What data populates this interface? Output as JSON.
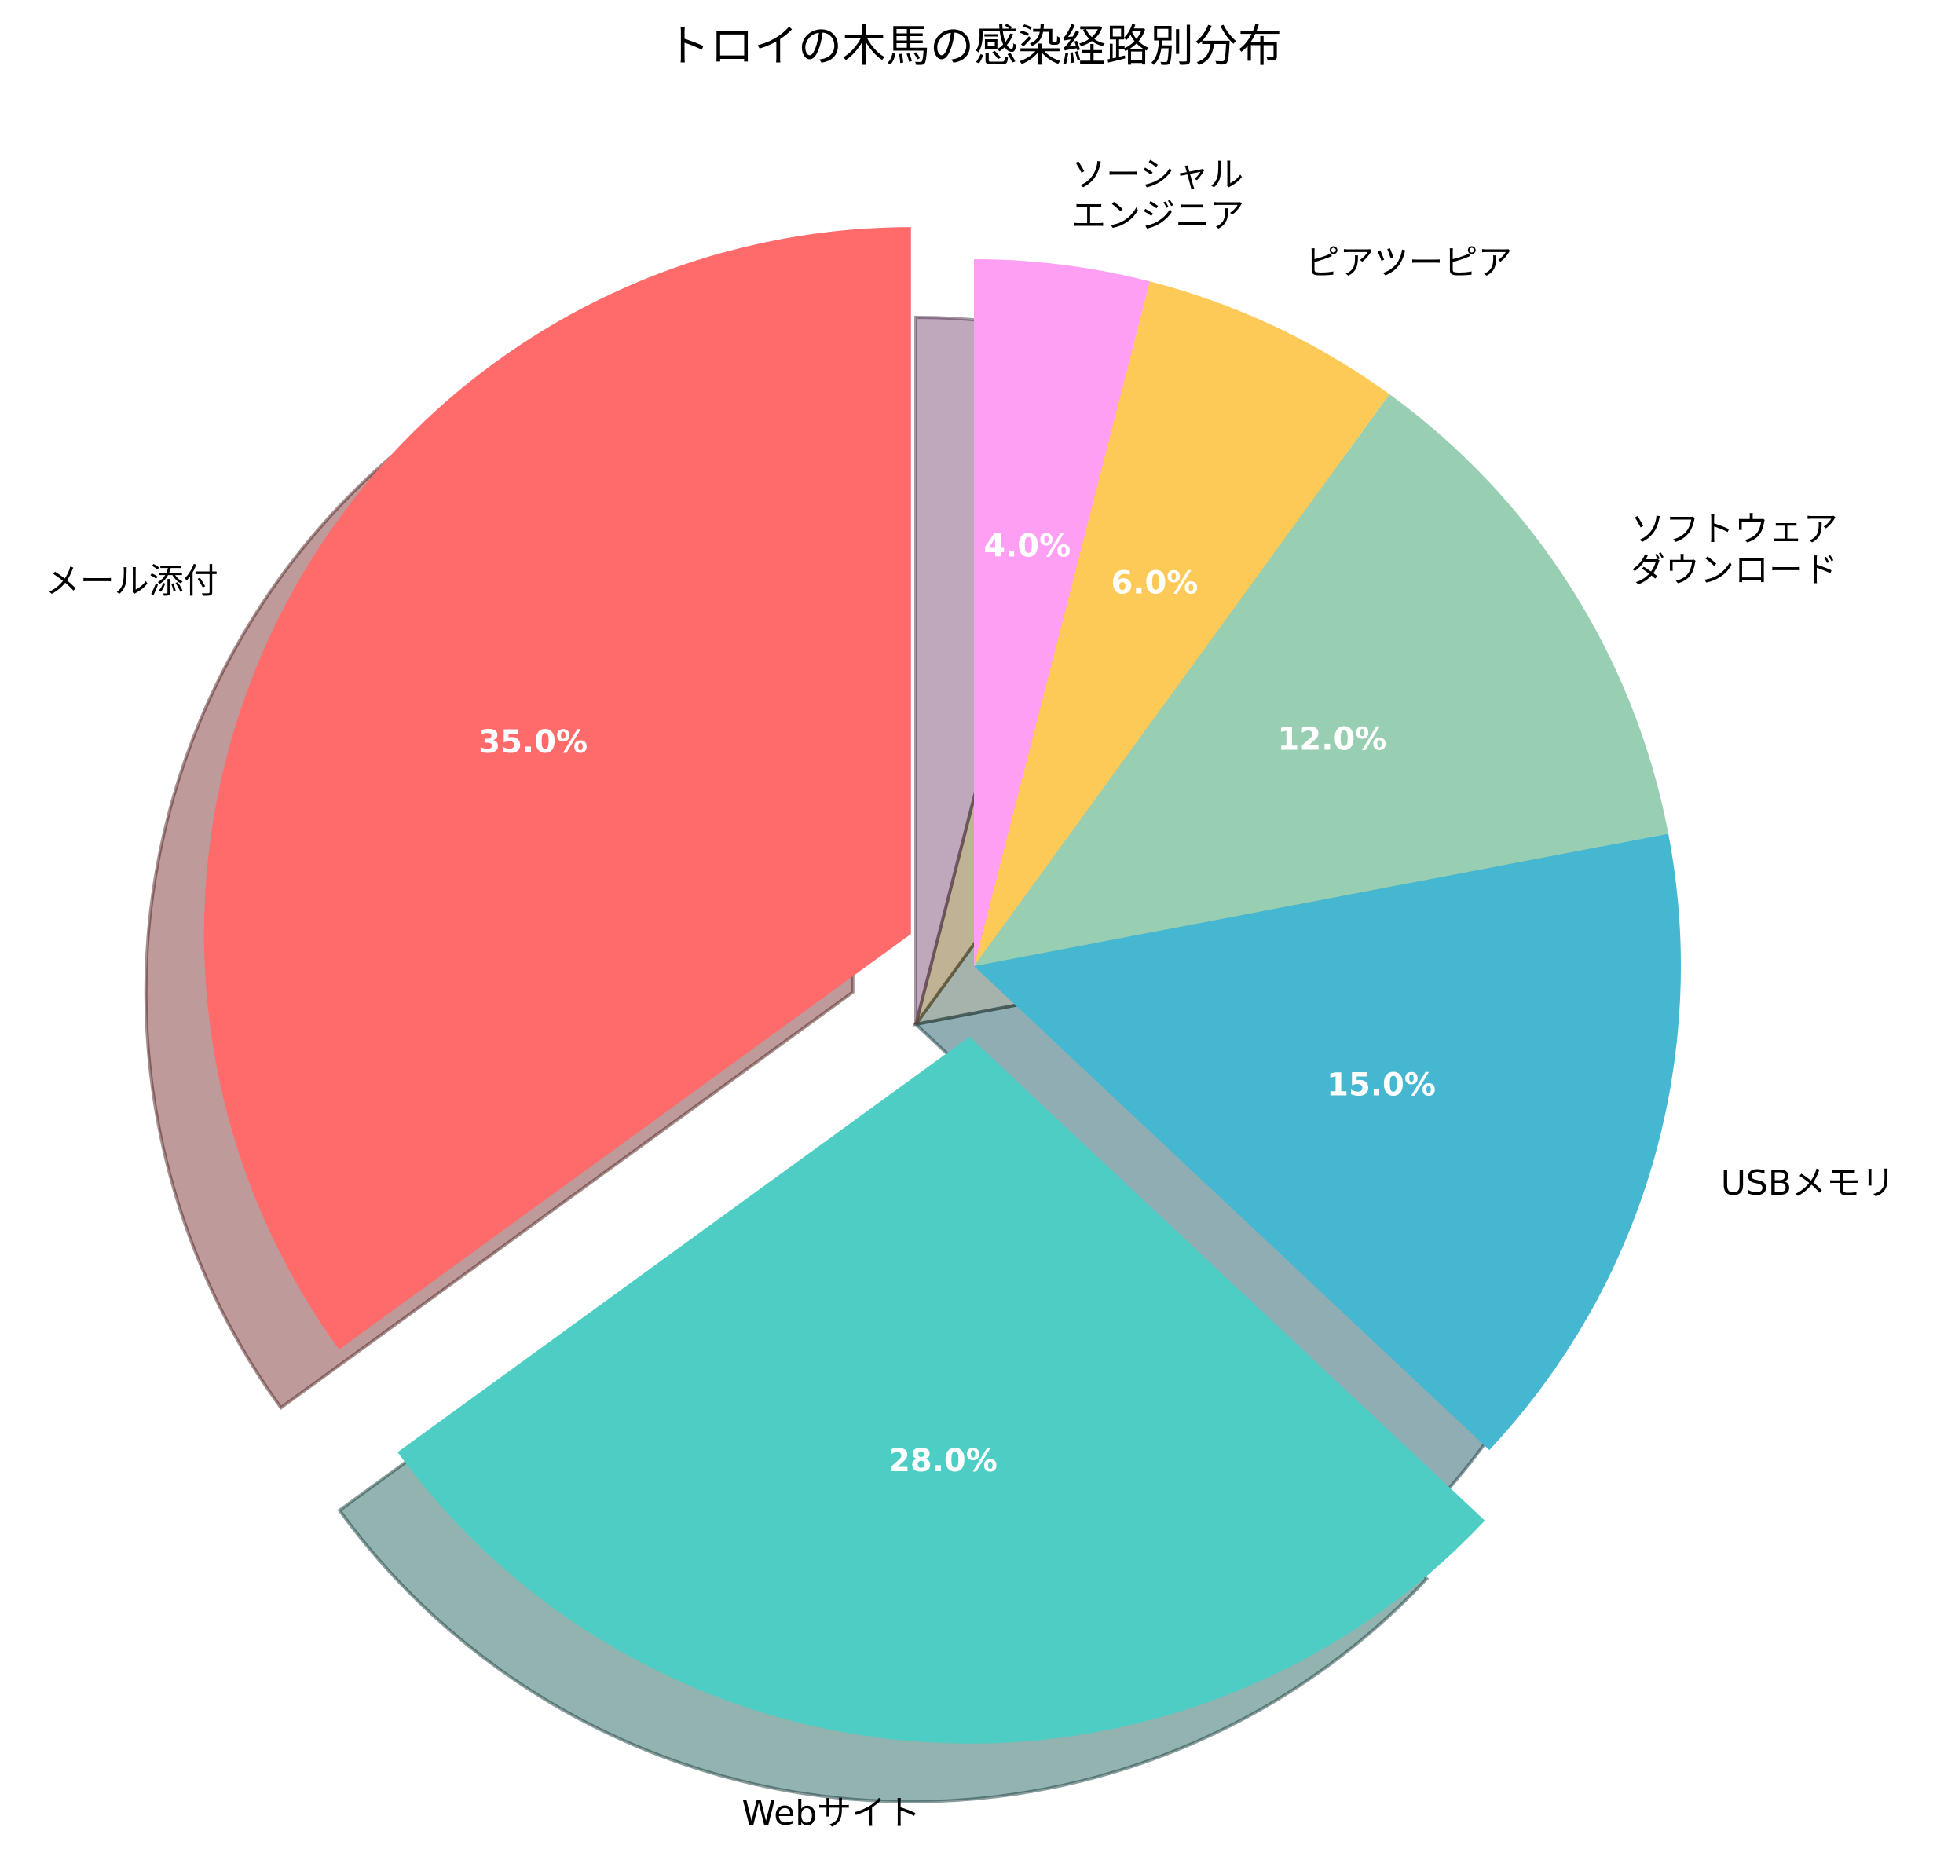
{
  "chart_data": {
    "type": "pie",
    "title": "トロイの木馬の感染経路別分布",
    "start_angle_deg": 90,
    "direction": "counterclockwise",
    "shadow": true,
    "slices": [
      {
        "label": [
          "メール添付"
        ],
        "value": 35.0,
        "pct_label": "35.0%",
        "color": "#FF6B6B",
        "exploded": true
      },
      {
        "label": [
          "Webサイト"
        ],
        "value": 28.0,
        "pct_label": "28.0%",
        "color": "#4ECDC4",
        "exploded": true
      },
      {
        "label": [
          "USBメモリ"
        ],
        "value": 15.0,
        "pct_label": "15.0%",
        "color": "#45B7D1",
        "exploded": false
      },
      {
        "label": [
          "ソフトウェア",
          "ダウンロード"
        ],
        "value": 12.0,
        "pct_label": "12.0%",
        "color": "#98CEB2",
        "exploded": false
      },
      {
        "label": [
          "ピアツーピア"
        ],
        "value": 6.0,
        "pct_label": "6.0%",
        "color": "#FECA57",
        "exploded": false
      },
      {
        "label": [
          "ソーシャル",
          "エンジニア"
        ],
        "value": 4.0,
        "pct_label": "4.0%",
        "color": "#FF9FF3",
        "exploded": false
      }
    ]
  }
}
